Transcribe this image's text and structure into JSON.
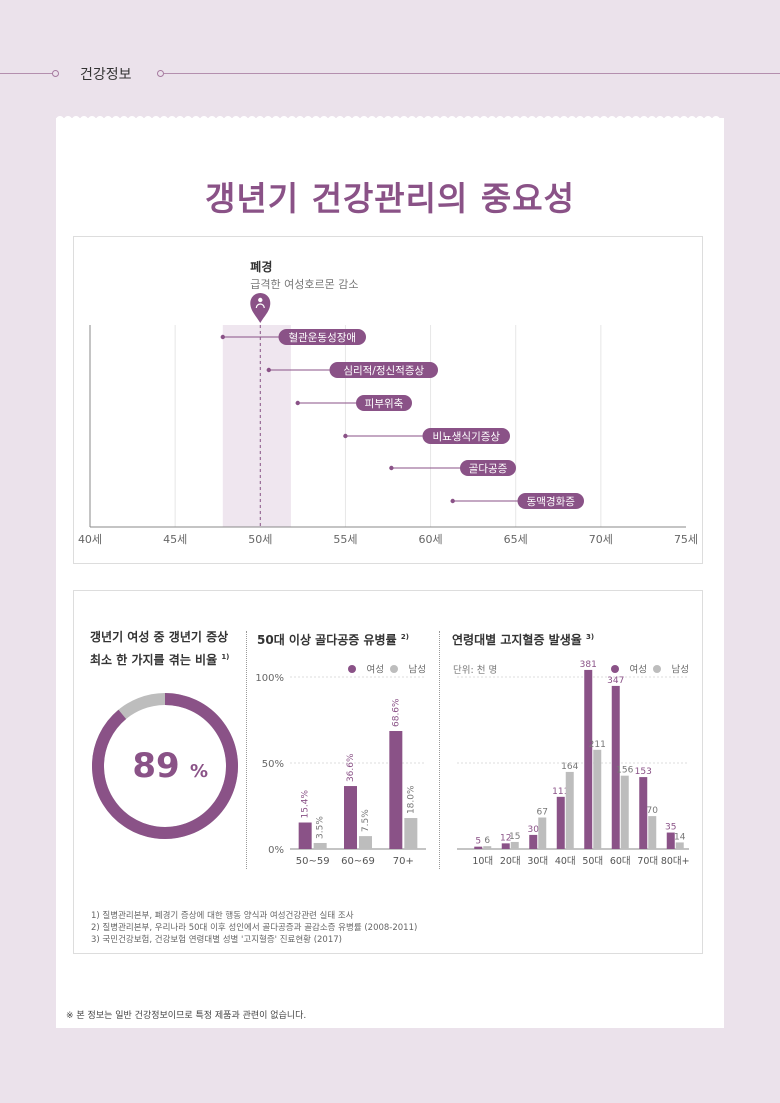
{
  "header": {
    "section": "건강정보"
  },
  "page_title": "갱년기 건강관리의 중요성",
  "timeline": {
    "menopause_label": "폐경",
    "menopause_sub": "급격한 여성호르몬 감소",
    "axis_labels": [
      "40세",
      "45세",
      "50세",
      "55세",
      "60세",
      "65세",
      "70세",
      "75세"
    ],
    "items": [
      {
        "label": "혈관운동성장애",
        "start_age": 47.8
      },
      {
        "label": "심리적/정신적증상",
        "start_age": 50.5
      },
      {
        "label": "피부위축",
        "start_age": 52.2
      },
      {
        "label": "비뇨생식기증상",
        "start_age": 55.0
      },
      {
        "label": "골다공증",
        "start_age": 57.7
      },
      {
        "label": "동맥경화증",
        "start_age": 61.3
      }
    ],
    "band_start_age": 47.8,
    "band_end_age": 51.8,
    "menopause_age": 50.0
  },
  "donut": {
    "title_line1": "갱년기 여성 중 갱년기 증상",
    "title_line2": "최소 한 가지를 겪는 비율",
    "title_sup": "1)",
    "value": "89",
    "unit": "%",
    "fraction": 0.89
  },
  "colors": {
    "primary": "#8a5287",
    "secondary": "#bdbdbd",
    "band": "#efe6ef"
  },
  "chart_data": [
    {
      "type": "bar",
      "title": "50대 이상 골다공증 유병률",
      "title_sup": "2)",
      "categories": [
        "50~59",
        "60~69",
        "70+"
      ],
      "series": [
        {
          "name": "여성",
          "values": [
            15.4,
            36.6,
            68.6
          ],
          "labels": [
            "15.4%",
            "36.6%",
            "68.6%"
          ]
        },
        {
          "name": "남성",
          "values": [
            3.5,
            7.5,
            18.0
          ],
          "labels": [
            "3.5%",
            "7.5%",
            "18.0%"
          ]
        }
      ],
      "y_ticks": [
        "100%",
        "50%",
        "0%"
      ],
      "ylim": [
        0,
        100
      ]
    },
    {
      "type": "bar",
      "title": "연령대별 고지혈증 발생율",
      "title_sup": "3)",
      "unit_label": "단위: 천 명",
      "categories": [
        "10대",
        "20대",
        "30대",
        "40대",
        "50대",
        "60대",
        "70대",
        "80대+"
      ],
      "series": [
        {
          "name": "여성",
          "values": [
            5,
            12,
            30,
            111,
            381,
            347,
            153,
            35
          ]
        },
        {
          "name": "남성",
          "values": [
            6,
            15,
            67,
            164,
            211,
            156,
            70,
            14
          ]
        }
      ],
      "ylim": [
        0,
        400
      ]
    }
  ],
  "footnotes": [
    "1) 질병관리본부, 폐경기 증상에 대한 행동 양식과 여성건강관련 실태 조사",
    "2) 질병관리본부, 우리나라 50대 이후 성인에서 골다공증과 골감소증 유병률 (2008-2011)",
    "3) 국민건강보험, 건강보험 연령대별 성별 '고지혈증' 진료현황 (2017)"
  ],
  "disclaimer": "※ 본 정보는 일반 건강정보이므로 특정 제품과 관련이 없습니다."
}
